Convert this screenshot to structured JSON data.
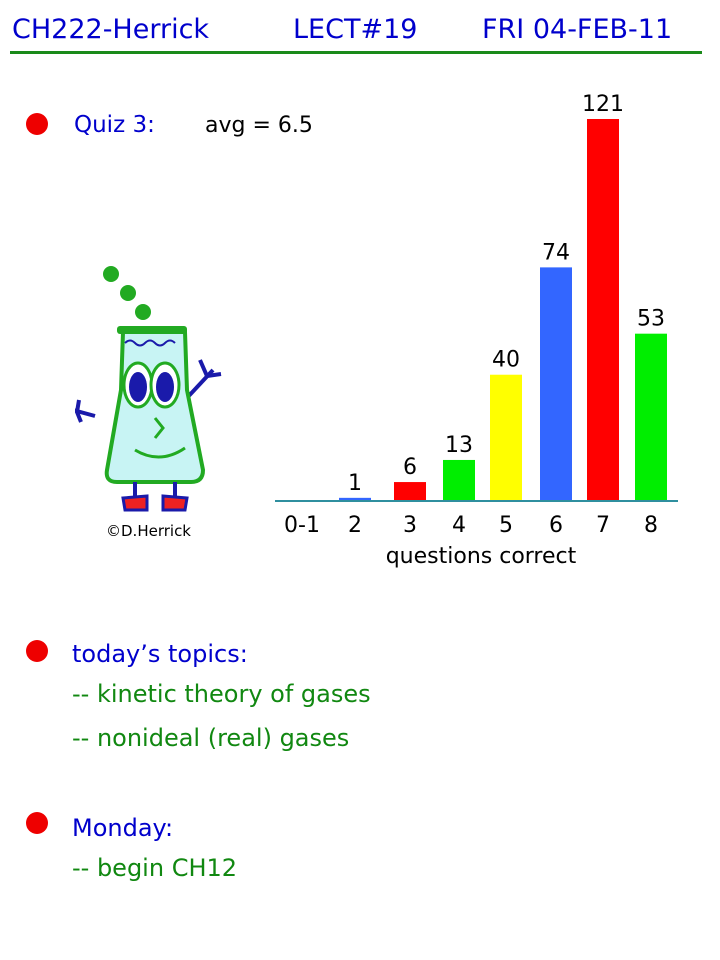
{
  "header": {
    "course": "CH222-Herrick",
    "lecture": "LECT#19",
    "date": "FRI 04-FEB-11"
  },
  "quiz": {
    "label": "Quiz 3:",
    "avg": "avg = 6.5"
  },
  "mascot": {
    "credit": "©D.Herrick",
    "icon": "flask-mascot-icon"
  },
  "topics": {
    "heading": "today’s topics:",
    "items": [
      "-- kinetic theory of gases",
      "-- nonideal (real) gases"
    ]
  },
  "monday": {
    "heading": "Monday:",
    "items": [
      "-- begin CH12"
    ]
  },
  "colors": {
    "title": "#0000cc",
    "bullet": "#ee0000",
    "subitem": "#118811",
    "rule": "#1a8a1a",
    "axis": "#2f8f9f"
  },
  "chart_data": {
    "type": "bar",
    "title": "",
    "xlabel": "questions correct",
    "ylabel": "",
    "categories": [
      "0-1",
      "2",
      "3",
      "4",
      "5",
      "6",
      "7",
      "8"
    ],
    "values": [
      0,
      1,
      6,
      13,
      40,
      74,
      121,
      53
    ],
    "data_labels": [
      "",
      "1",
      "6",
      "13",
      "40",
      "74",
      "121",
      "53"
    ],
    "bar_colors": [
      "#3366ff",
      "#3366ff",
      "#ff0000",
      "#00ee00",
      "#ffff00",
      "#3366ff",
      "#ff0000",
      "#00ee00"
    ],
    "ylim": [
      0,
      121
    ],
    "grid": false
  }
}
